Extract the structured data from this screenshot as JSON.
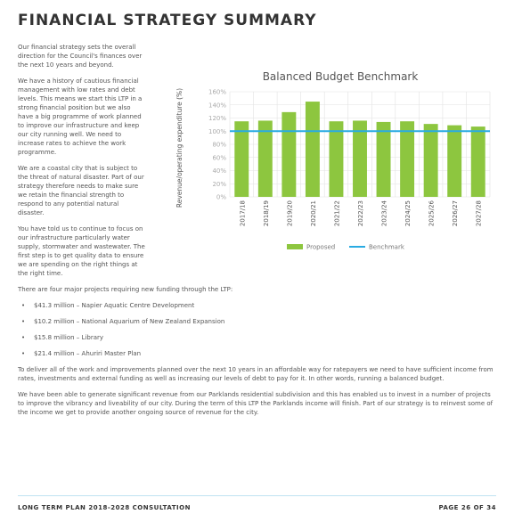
{
  "title": "FINANCIAL STRATEGY SUMMARY",
  "paragraphs": [
    "Our financial strategy sets the overall direction for the Council's finances over the next 10 years and beyond.",
    "We have a history of cautious financial management with low rates and debt levels. This means we start this LTP in a strong financial position but we also have a big programme of work planned to improve our infrastructure and keep our city running well. We need to increase rates to achieve the work programme.",
    "We are a coastal city that is subject to the threat of natural disaster. Part of our strategy therefore needs to make sure we retain the financial strength to respond to any potential natural disaster.",
    "You have told us to continue to focus on our infrastructure particularly water supply, stormwater and wastewater. The first step is to get quality data to ensure we are spending on the right things at the right time.",
    "There are four major projects requiring new funding through the LTP:"
  ],
  "bullets": [
    "$41.3 million – Napier Aquatic Centre Development",
    "$10.2 million – National Aquarium of New Zealand Expansion",
    "$15.8 million – Library",
    "$21.4 million – Ahuriri Master Plan"
  ],
  "closing_paragraphs": [
    "To deliver all of the work and improvements planned over the next 10 years in an affordable way for ratepayers we need to have sufficient income from rates, investments and external funding as well as increasing our levels of debt to pay for it. In other words, running a balanced budget.",
    "We have been able to generate significant revenue from our Parklands residential subdivision and this has enabled us to invest in a number of projects to improve the vibrancy and liveability of our city. During the term of this LTP the Parklands income will finish. Part of our strategy is to reinvest some of the income we get to provide another ongoing source of revenue for the city."
  ],
  "footer": {
    "left": "LONG TERM PLAN 2018-2028 CONSULTATION",
    "right": "PAGE 26 OF 34"
  },
  "chart_data": {
    "type": "bar",
    "title": "Balanced Budget Benchmark",
    "y_label": "Revenue/operating expenditure (%)",
    "categories": [
      "2017/18",
      "2018/19",
      "2019/20",
      "2020/21",
      "2021/22",
      "2022/23",
      "2023/24",
      "2024/25",
      "2025/26",
      "2026/27",
      "2027/28"
    ],
    "series": [
      {
        "name": "Proposed",
        "type": "bar",
        "color": "#8dc63f",
        "values": [
          115,
          116,
          129,
          145,
          115,
          116,
          114,
          115,
          111,
          109,
          107
        ]
      },
      {
        "name": "Benchmark",
        "type": "line",
        "color": "#29abe2",
        "values": [
          100,
          100,
          100,
          100,
          100,
          100,
          100,
          100,
          100,
          100,
          100
        ]
      }
    ],
    "ylim": [
      0,
      160
    ],
    "yticks": [
      {
        "value": 0,
        "label": "0%"
      },
      {
        "value": 20,
        "label": "20%"
      },
      {
        "value": 40,
        "label": "40%"
      },
      {
        "value": 60,
        "label": "60%"
      },
      {
        "value": 80,
        "label": "80%"
      },
      {
        "value": 100,
        "label": "100%"
      },
      {
        "value": 120,
        "label": "120%"
      },
      {
        "value": 140,
        "label": "140%"
      },
      {
        "value": 160,
        "label": "160%"
      }
    ],
    "grid": true,
    "legend": "bottom"
  }
}
